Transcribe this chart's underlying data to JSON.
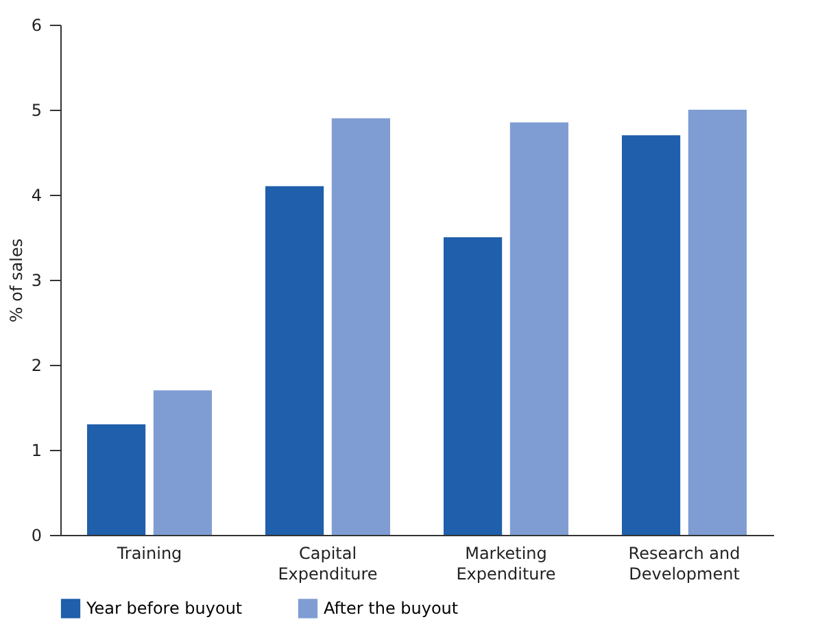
{
  "chart_data": {
    "type": "bar",
    "ylabel": "% of sales",
    "categories": [
      "Training",
      "Capital Expenditure",
      "Marketing Expenditure",
      "Research and Development"
    ],
    "series": [
      {
        "name": "Year before buyout",
        "color": "#1f5fab",
        "values": [
          1.3,
          4.1,
          3.5,
          4.7
        ]
      },
      {
        "name": "After the buyout",
        "color": "#7f9dd3",
        "values": [
          1.7,
          4.9,
          4.85,
          5.0
        ]
      }
    ],
    "ylim": [
      0,
      6
    ],
    "yticks": [
      0,
      1,
      2,
      3,
      4,
      5,
      6
    ],
    "grid": false,
    "legend": "bottom"
  }
}
